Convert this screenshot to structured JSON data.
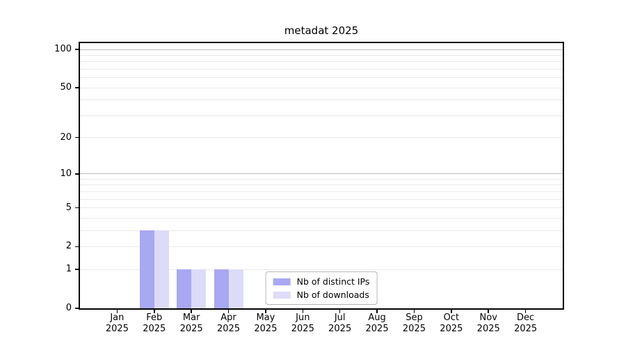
{
  "chart_data": {
    "type": "bar",
    "title": "metadat 2025",
    "categories": [
      "Jan",
      "Feb",
      "Mar",
      "Apr",
      "May",
      "Jun",
      "Jul",
      "Aug",
      "Sep",
      "Oct",
      "Nov",
      "Dec"
    ],
    "x_tick_year": "2025",
    "series": [
      {
        "name": "Nb of distinct IPs",
        "color": "#a8a8f3",
        "values": [
          0,
          3,
          1,
          1,
          0,
          0,
          0,
          0,
          0,
          0,
          0,
          0
        ]
      },
      {
        "name": "Nb of downloads",
        "color": "#dcdcf9",
        "values": [
          0,
          3,
          1,
          1,
          0,
          0,
          0,
          0,
          0,
          0,
          0,
          0
        ]
      }
    ],
    "y_axis": {
      "scale": "log1p",
      "labeled_ticks": [
        0,
        1,
        2,
        5,
        10,
        20,
        50,
        100
      ],
      "major_gridlines": [
        10,
        100
      ],
      "minor_gridlines": [
        1,
        2,
        3,
        4,
        5,
        6,
        7,
        8,
        9,
        20,
        30,
        40,
        50,
        60,
        70,
        80,
        90
      ],
      "ymax": 112
    },
    "legend_position": "lower center",
    "grid": "horizontal both",
    "colors": {
      "grid_major": "#bdbdbd",
      "grid_minor": "#e9e9e9",
      "spine": "#000000",
      "text": "#000000",
      "legend_border": "#b5b5b5",
      "background": "#ffffff"
    }
  }
}
